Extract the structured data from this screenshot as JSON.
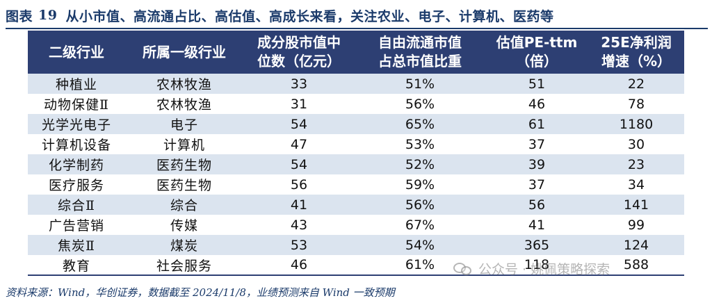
{
  "title": {
    "label": "图表",
    "number": "19",
    "text": "从小市值、高流通占比、高估值、高成长来看，关注农业、电子、计算机、医药等"
  },
  "table": {
    "headers": [
      "二级行业",
      "所属一级行业",
      "成分股市值中\n位数（亿元）",
      "自由流通市值\n占总市值比重",
      "估值PE-ttm\n（倍）",
      "25E净利润\n增速（%）"
    ],
    "rows": [
      [
        "种植业",
        "农林牧渔",
        "33",
        "51%",
        "51",
        "22"
      ],
      [
        "动物保健Ⅱ",
        "农林牧渔",
        "31",
        "56%",
        "46",
        "78"
      ],
      [
        "光学光电子",
        "电子",
        "54",
        "65%",
        "61",
        "1180"
      ],
      [
        "计算机设备",
        "计算机",
        "47",
        "53%",
        "37",
        "30"
      ],
      [
        "化学制药",
        "医药生物",
        "54",
        "52%",
        "39",
        "23"
      ],
      [
        "医疗服务",
        "医药生物",
        "56",
        "59%",
        "37",
        "34"
      ],
      [
        "综合Ⅱ",
        "综合",
        "41",
        "56%",
        "56",
        "141"
      ],
      [
        "广告营销",
        "传媒",
        "43",
        "67%",
        "41",
        "99"
      ],
      [
        "焦炭Ⅱ",
        "煤炭",
        "53",
        "54%",
        "365",
        "124"
      ],
      [
        "教育",
        "社会服务",
        "46",
        "61%",
        "118",
        "588"
      ]
    ]
  },
  "watermark": "公众号 · 姚佩策略探索",
  "footnote": "资料来源：Wind，华创证券，数据截至 2024/11/8，业绩预测来自 Wind 一致预期",
  "colors": {
    "header_bg": "#2d3f73",
    "row_shade": "#dbe4ef",
    "title": "#1a3a6a"
  }
}
